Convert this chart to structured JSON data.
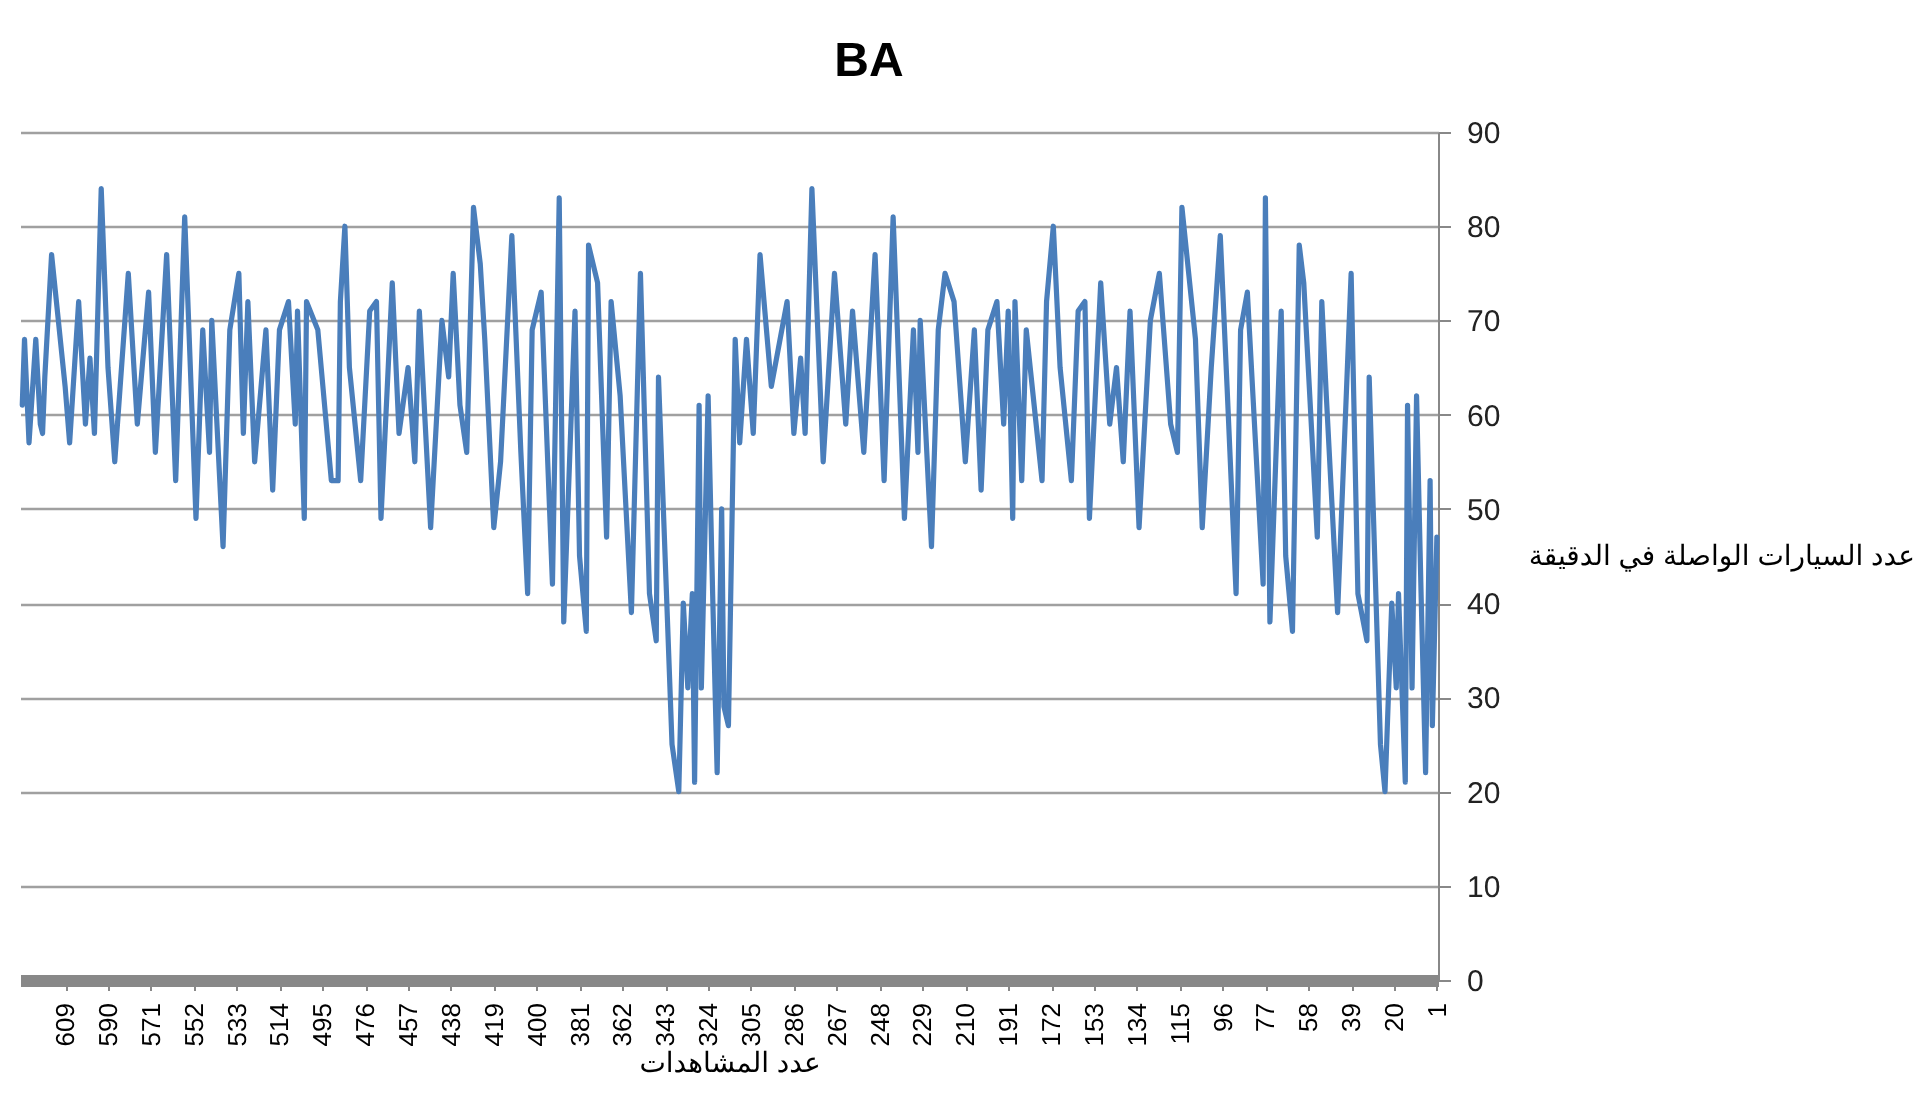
{
  "chart_data": {
    "type": "line",
    "title": "BA",
    "xlabel": "عدد المشاهدات",
    "ylabel": "عدد السيارات الواصلة في الدقيقة",
    "x": [
      628,
      627,
      625,
      622,
      620,
      619,
      618,
      615,
      609,
      607,
      603,
      600,
      598,
      596,
      593,
      590,
      587,
      581,
      577,
      572,
      569,
      564,
      560,
      556,
      551,
      548,
      545,
      544,
      539,
      536,
      532,
      530,
      528,
      525,
      520,
      517,
      514,
      510,
      507,
      506,
      503,
      502,
      497,
      491,
      488,
      487,
      485,
      483,
      478,
      474,
      471,
      469,
      464,
      461,
      457,
      454,
      452,
      447,
      442,
      439,
      437,
      434,
      431,
      428,
      425,
      423,
      419,
      416,
      411,
      407,
      404,
      402,
      398,
      393,
      390,
      388,
      383,
      381,
      378,
      377,
      373,
      369,
      367,
      363,
      358,
      354,
      350,
      347,
      346,
      340,
      337,
      335,
      333,
      331,
      330,
      328,
      327,
      324,
      322,
      320,
      318,
      317,
      315,
      312,
      310,
      307,
      304,
      301,
      296,
      289,
      286,
      283,
      281,
      278,
      273,
      268,
      263,
      260,
      255,
      250,
      246,
      242,
      237,
      233,
      231,
      230,
      225,
      222,
      219,
      215,
      210,
      206,
      203,
      200,
      196,
      193,
      191,
      189,
      188,
      185,
      183,
      176,
      174,
      171,
      168,
      163,
      160,
      157,
      155,
      150,
      146,
      143,
      140,
      137,
      133,
      128,
      124,
      119,
      116,
      114,
      108,
      105,
      101,
      97,
      94,
      90,
      88,
      85,
      78,
      77,
      75,
      70,
      68,
      65,
      62,
      60,
      54,
      52,
      50,
      45,
      39,
      36,
      32,
      31,
      26,
      24,
      21,
      19,
      18,
      15,
      14,
      12,
      10,
      8,
      6,
      4,
      3,
      1
    ],
    "series": [
      {
        "color": "#4a7ebb",
        "values": [
          61,
          68,
          57,
          68,
          59,
          58,
          64,
          77,
          63,
          57,
          72,
          59,
          66,
          58,
          84,
          65,
          55,
          75,
          59,
          73,
          56,
          77,
          53,
          81,
          49,
          69,
          56,
          70,
          46,
          69,
          75,
          58,
          72,
          55,
          69,
          52,
          69,
          72,
          59,
          71,
          49,
          72,
          69,
          53,
          53,
          72,
          80,
          65,
          53,
          71,
          72,
          49,
          74,
          58,
          65,
          55,
          71,
          48,
          70,
          64,
          75,
          61,
          56,
          82,
          76,
          68,
          48,
          55,
          79,
          56,
          41,
          69,
          73,
          42,
          83,
          38,
          71,
          45,
          37,
          78,
          74,
          47,
          72,
          62,
          39,
          75,
          41,
          36,
          64,
          25,
          20,
          40,
          31,
          41,
          21,
          61,
          31,
          62,
          41,
          22,
          50,
          29,
          27,
          68,
          57,
          68,
          58,
          77,
          63,
          72,
          58,
          66,
          58,
          84,
          55,
          75,
          59,
          71,
          56,
          77,
          53,
          81,
          49,
          69,
          56,
          70,
          46,
          69,
          75,
          72,
          55,
          69,
          52,
          69,
          72,
          59,
          71,
          49,
          72,
          53,
          69,
          53,
          72,
          80,
          65,
          53,
          71,
          72,
          49,
          74,
          59,
          65,
          55,
          71,
          48,
          70,
          75,
          59,
          56,
          82,
          68,
          48,
          65,
          79,
          63,
          41,
          69,
          73,
          42,
          83,
          38,
          71,
          45,
          37,
          78,
          74,
          47,
          72,
          62,
          39,
          75,
          41,
          36,
          64,
          25,
          20,
          40,
          31,
          41,
          21,
          61,
          31,
          62,
          41,
          22,
          53,
          27,
          47
        ]
      }
    ],
    "xlim": [
      629,
      0.5
    ],
    "xticks": [
      609,
      590,
      571,
      552,
      533,
      514,
      495,
      476,
      457,
      438,
      419,
      400,
      381,
      362,
      343,
      324,
      305,
      286,
      267,
      248,
      229,
      210,
      191,
      172,
      153,
      134,
      115,
      96,
      77,
      58,
      39,
      20,
      1
    ],
    "ylim": [
      0,
      90
    ],
    "yticks": [
      0,
      10,
      20,
      30,
      40,
      50,
      60,
      70,
      80,
      90
    ],
    "grid": "y"
  }
}
